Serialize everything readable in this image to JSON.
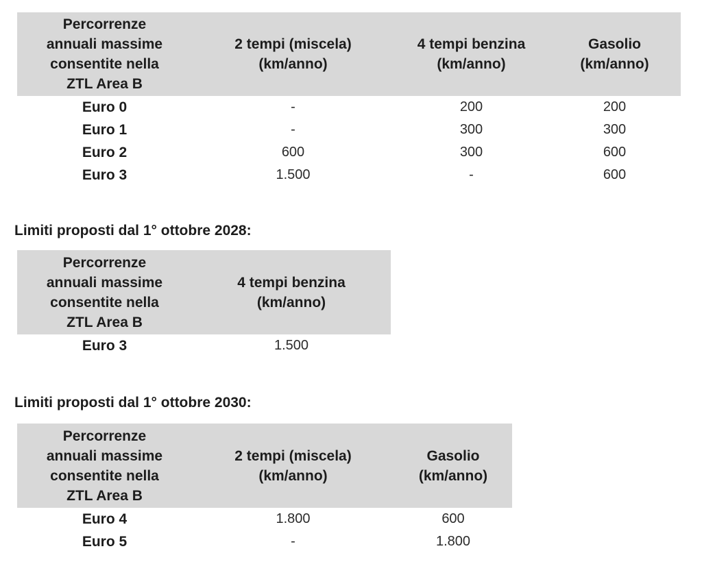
{
  "colors": {
    "page_background": "#ffffff",
    "table_header_background": "#d8d8d8",
    "text": "#1c1c1c"
  },
  "sections": {
    "heading_2028": "Limiti proposti dal 1° ottobre 2028:",
    "heading_2030": "Limiti proposti dal 1° ottobre 2030:"
  },
  "tables": {
    "t1": {
      "row_header": [
        "Percorrenze",
        "annuali massime",
        "consentite nella",
        "ZTL Area B"
      ],
      "col1": [
        "2 tempi (miscela)",
        "(km/anno)"
      ],
      "col2": [
        "4 tempi benzina",
        "(km/anno)"
      ],
      "col3": [
        "Gasolio",
        "(km/anno)"
      ],
      "rows": [
        {
          "label": "Euro 0",
          "values": [
            "-",
            "200",
            "200"
          ]
        },
        {
          "label": "Euro 1",
          "values": [
            "-",
            "300",
            "300"
          ]
        },
        {
          "label": "Euro 2",
          "values": [
            "600",
            "300",
            "600"
          ]
        },
        {
          "label": "Euro 3",
          "values": [
            "1.500",
            "-",
            "600"
          ]
        }
      ]
    },
    "t2": {
      "row_header": [
        "Percorrenze",
        "annuali massime",
        "consentite nella",
        "ZTL Area B"
      ],
      "col1": [
        "4 tempi benzina",
        "(km/anno)"
      ],
      "rows": [
        {
          "label": "Euro 3",
          "values": [
            "1.500"
          ]
        }
      ]
    },
    "t3": {
      "row_header": [
        "Percorrenze",
        "annuali massime",
        "consentite nella",
        "ZTL Area B"
      ],
      "col1": [
        "2 tempi (miscela)",
        "(km/anno)"
      ],
      "col2": [
        "Gasolio",
        "(km/anno)"
      ],
      "rows": [
        {
          "label": "Euro 4",
          "values": [
            "1.800",
            "600"
          ]
        },
        {
          "label": "Euro 5",
          "values": [
            "-",
            "1.800"
          ]
        }
      ]
    }
  }
}
